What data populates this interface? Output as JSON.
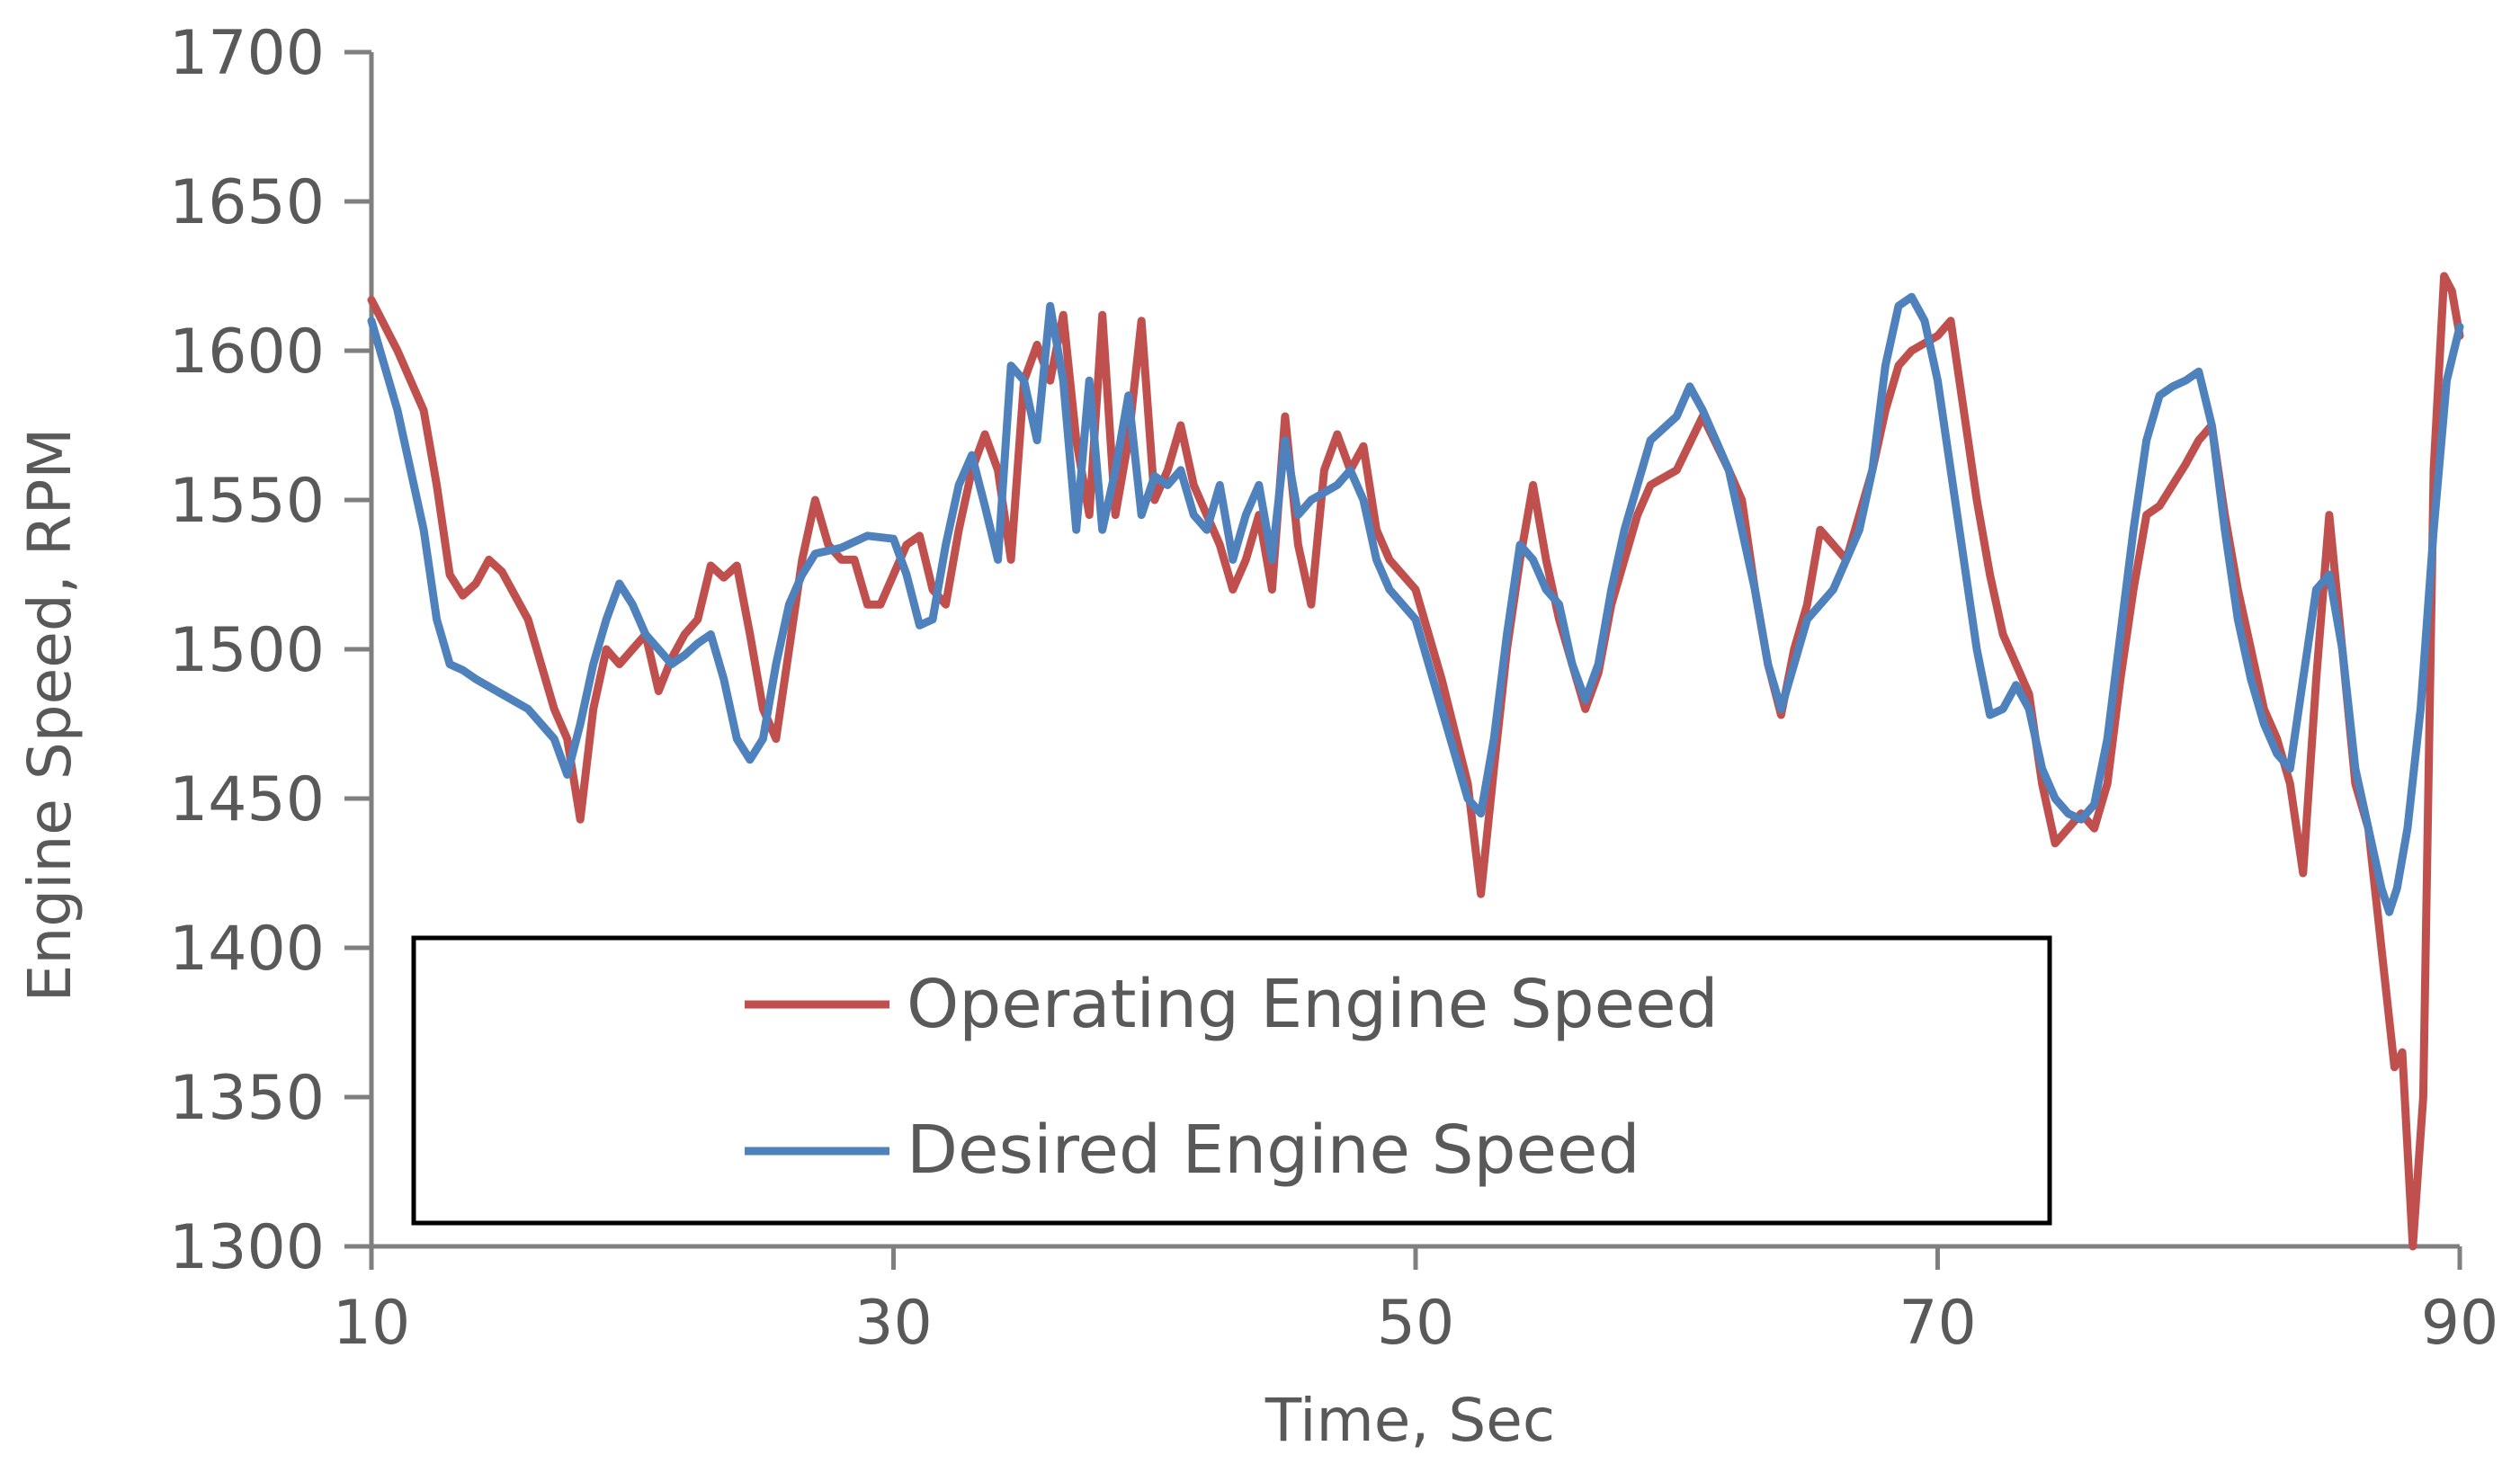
{
  "chart_data": {
    "type": "line",
    "xlabel": "Time, Sec",
    "ylabel": "Engine Speed, RPM",
    "xlim": [
      10,
      90
    ],
    "ylim": [
      1300,
      1700
    ],
    "xticks": [
      10,
      30,
      50,
      70,
      90
    ],
    "yticks": [
      1300,
      1350,
      1400,
      1450,
      1500,
      1550,
      1600,
      1650,
      1700
    ],
    "legend_position": "bottom-left",
    "series": [
      {
        "name": "Operating Engine Speed",
        "color": "#c0504d",
        "points": [
          [
            10,
            1617
          ],
          [
            11,
            1600
          ],
          [
            12,
            1580
          ],
          [
            12.5,
            1555
          ],
          [
            13,
            1525
          ],
          [
            13.5,
            1518
          ],
          [
            14,
            1522
          ],
          [
            14.5,
            1530
          ],
          [
            15,
            1526
          ],
          [
            16,
            1510
          ],
          [
            17,
            1480
          ],
          [
            17.5,
            1470
          ],
          [
            18,
            1443
          ],
          [
            18.5,
            1480
          ],
          [
            19,
            1500
          ],
          [
            19.5,
            1495
          ],
          [
            20,
            1500
          ],
          [
            20.5,
            1505
          ],
          [
            21,
            1486
          ],
          [
            21.5,
            1497
          ],
          [
            22,
            1505
          ],
          [
            22.5,
            1510
          ],
          [
            23,
            1528
          ],
          [
            23.5,
            1524
          ],
          [
            24,
            1528
          ],
          [
            24.5,
            1505
          ],
          [
            25,
            1480
          ],
          [
            25.5,
            1470
          ],
          [
            26,
            1500
          ],
          [
            26.5,
            1530
          ],
          [
            27,
            1550
          ],
          [
            27.5,
            1535
          ],
          [
            28,
            1530
          ],
          [
            28.5,
            1530
          ],
          [
            29,
            1515
          ],
          [
            29.5,
            1515
          ],
          [
            30,
            1525
          ],
          [
            30.5,
            1535
          ],
          [
            31,
            1538
          ],
          [
            31.5,
            1520
          ],
          [
            32,
            1515
          ],
          [
            32.5,
            1540
          ],
          [
            33,
            1560
          ],
          [
            33.5,
            1572
          ],
          [
            34,
            1560
          ],
          [
            34.5,
            1530
          ],
          [
            35,
            1590
          ],
          [
            35.5,
            1602
          ],
          [
            36,
            1590
          ],
          [
            36.5,
            1612
          ],
          [
            37,
            1570
          ],
          [
            37.5,
            1545
          ],
          [
            38,
            1612
          ],
          [
            38.5,
            1545
          ],
          [
            39,
            1570
          ],
          [
            39.5,
            1610
          ],
          [
            40,
            1550
          ],
          [
            40.5,
            1560
          ],
          [
            41,
            1575
          ],
          [
            41.5,
            1555
          ],
          [
            42,
            1545
          ],
          [
            42.5,
            1535
          ],
          [
            43,
            1520
          ],
          [
            43.5,
            1530
          ],
          [
            44,
            1545
          ],
          [
            44.5,
            1520
          ],
          [
            45,
            1578
          ],
          [
            45.5,
            1535
          ],
          [
            46,
            1515
          ],
          [
            46.5,
            1560
          ],
          [
            47,
            1572
          ],
          [
            47.5,
            1560
          ],
          [
            48,
            1568
          ],
          [
            48.5,
            1540
          ],
          [
            49,
            1530
          ],
          [
            49.5,
            1525
          ],
          [
            50,
            1520
          ],
          [
            51,
            1490
          ],
          [
            52,
            1455
          ],
          [
            52.5,
            1418
          ],
          [
            53,
            1460
          ],
          [
            53.5,
            1500
          ],
          [
            54,
            1530
          ],
          [
            54.5,
            1555
          ],
          [
            55,
            1530
          ],
          [
            55.5,
            1510
          ],
          [
            56,
            1495
          ],
          [
            56.5,
            1480
          ],
          [
            57,
            1492
          ],
          [
            57.5,
            1515
          ],
          [
            58,
            1530
          ],
          [
            58.5,
            1545
          ],
          [
            59,
            1555
          ],
          [
            60,
            1560
          ],
          [
            61,
            1578
          ],
          [
            62,
            1560
          ],
          [
            62.5,
            1550
          ],
          [
            63,
            1520
          ],
          [
            63.5,
            1495
          ],
          [
            64,
            1478
          ],
          [
            64.5,
            1500
          ],
          [
            65,
            1515
          ],
          [
            65.5,
            1540
          ],
          [
            66,
            1535
          ],
          [
            66.5,
            1530
          ],
          [
            67,
            1545
          ],
          [
            67.5,
            1560
          ],
          [
            68,
            1580
          ],
          [
            68.5,
            1595
          ],
          [
            69,
            1600
          ],
          [
            70,
            1605
          ],
          [
            70.5,
            1610
          ],
          [
            71,
            1580
          ],
          [
            71.5,
            1550
          ],
          [
            72,
            1525
          ],
          [
            72.5,
            1505
          ],
          [
            73,
            1495
          ],
          [
            73.5,
            1485
          ],
          [
            74,
            1455
          ],
          [
            74.5,
            1435
          ],
          [
            75,
            1440
          ],
          [
            75.5,
            1445
          ],
          [
            76,
            1440
          ],
          [
            76.5,
            1455
          ],
          [
            77,
            1490
          ],
          [
            77.5,
            1520
          ],
          [
            78,
            1545
          ],
          [
            78.5,
            1548
          ],
          [
            79,
            1555
          ],
          [
            79.5,
            1562
          ],
          [
            80,
            1570
          ],
          [
            80.5,
            1575
          ],
          [
            81,
            1545
          ],
          [
            81.5,
            1520
          ],
          [
            82,
            1500
          ],
          [
            82.5,
            1480
          ],
          [
            83,
            1470
          ],
          [
            83.5,
            1455
          ],
          [
            84,
            1425
          ],
          [
            84.5,
            1490
          ],
          [
            85,
            1545
          ],
          [
            85.5,
            1500
          ],
          [
            86,
            1455
          ],
          [
            86.5,
            1440
          ],
          [
            87,
            1400
          ],
          [
            87.5,
            1360
          ],
          [
            87.8,
            1365
          ],
          [
            88.2,
            1300
          ],
          [
            88.6,
            1350
          ],
          [
            89,
            1560
          ],
          [
            89.4,
            1625
          ],
          [
            89.7,
            1620
          ],
          [
            90,
            1605
          ]
        ]
      },
      {
        "name": "Desired Engine Speed",
        "color": "#4f81bd",
        "points": [
          [
            10,
            1610
          ],
          [
            11,
            1580
          ],
          [
            12,
            1540
          ],
          [
            12.5,
            1510
          ],
          [
            13,
            1495
          ],
          [
            13.5,
            1493
          ],
          [
            14,
            1490
          ],
          [
            15,
            1485
          ],
          [
            16,
            1480
          ],
          [
            17,
            1470
          ],
          [
            17.5,
            1458
          ],
          [
            18,
            1475
          ],
          [
            18.5,
            1495
          ],
          [
            19,
            1510
          ],
          [
            19.5,
            1522
          ],
          [
            20,
            1515
          ],
          [
            20.5,
            1505
          ],
          [
            21,
            1500
          ],
          [
            21.5,
            1495
          ],
          [
            22,
            1498
          ],
          [
            22.5,
            1502
          ],
          [
            23,
            1505
          ],
          [
            23.5,
            1490
          ],
          [
            24,
            1470
          ],
          [
            24.5,
            1463
          ],
          [
            25,
            1470
          ],
          [
            25.5,
            1495
          ],
          [
            26,
            1515
          ],
          [
            26.5,
            1525
          ],
          [
            27,
            1532
          ],
          [
            28,
            1534
          ],
          [
            29,
            1538
          ],
          [
            30,
            1537
          ],
          [
            30.5,
            1525
          ],
          [
            31,
            1508
          ],
          [
            31.5,
            1510
          ],
          [
            32,
            1535
          ],
          [
            32.5,
            1555
          ],
          [
            33,
            1565
          ],
          [
            33.5,
            1548
          ],
          [
            34,
            1530
          ],
          [
            34.5,
            1595
          ],
          [
            35,
            1590
          ],
          [
            35.5,
            1570
          ],
          [
            36,
            1615
          ],
          [
            36.5,
            1590
          ],
          [
            37,
            1540
          ],
          [
            37.5,
            1590
          ],
          [
            38,
            1540
          ],
          [
            38.5,
            1560
          ],
          [
            39,
            1585
          ],
          [
            39.5,
            1545
          ],
          [
            40,
            1558
          ],
          [
            40.5,
            1555
          ],
          [
            41,
            1560
          ],
          [
            41.5,
            1545
          ],
          [
            42,
            1540
          ],
          [
            42.5,
            1555
          ],
          [
            43,
            1530
          ],
          [
            43.5,
            1545
          ],
          [
            44,
            1555
          ],
          [
            44.5,
            1530
          ],
          [
            45,
            1570
          ],
          [
            45.5,
            1545
          ],
          [
            46,
            1550
          ],
          [
            47,
            1555
          ],
          [
            47.5,
            1560
          ],
          [
            48,
            1550
          ],
          [
            48.5,
            1530
          ],
          [
            49,
            1520
          ],
          [
            50,
            1510
          ],
          [
            51,
            1480
          ],
          [
            52,
            1450
          ],
          [
            52.5,
            1445
          ],
          [
            53,
            1470
          ],
          [
            53.5,
            1505
          ],
          [
            54,
            1535
          ],
          [
            54.5,
            1530
          ],
          [
            55,
            1520
          ],
          [
            55.5,
            1515
          ],
          [
            56,
            1495
          ],
          [
            56.5,
            1483
          ],
          [
            57,
            1495
          ],
          [
            57.5,
            1520
          ],
          [
            58,
            1540
          ],
          [
            58.5,
            1555
          ],
          [
            59,
            1570
          ],
          [
            60,
            1578
          ],
          [
            60.5,
            1588
          ],
          [
            61,
            1580
          ],
          [
            61.5,
            1570
          ],
          [
            62,
            1560
          ],
          [
            62.5,
            1540
          ],
          [
            63,
            1520
          ],
          [
            63.5,
            1495
          ],
          [
            64,
            1480
          ],
          [
            64.5,
            1495
          ],
          [
            65,
            1510
          ],
          [
            66,
            1520
          ],
          [
            66.5,
            1530
          ],
          [
            67,
            1540
          ],
          [
            67.5,
            1560
          ],
          [
            68,
            1595
          ],
          [
            68.5,
            1615
          ],
          [
            69,
            1618
          ],
          [
            69.5,
            1610
          ],
          [
            70,
            1590
          ],
          [
            70.5,
            1560
          ],
          [
            71,
            1530
          ],
          [
            71.5,
            1500
          ],
          [
            72,
            1478
          ],
          [
            72.5,
            1480
          ],
          [
            73,
            1488
          ],
          [
            73.5,
            1480
          ],
          [
            74,
            1460
          ],
          [
            74.5,
            1450
          ],
          [
            75,
            1445
          ],
          [
            75.5,
            1443
          ],
          [
            76,
            1448
          ],
          [
            76.5,
            1470
          ],
          [
            77,
            1505
          ],
          [
            77.5,
            1540
          ],
          [
            78,
            1570
          ],
          [
            78.5,
            1585
          ],
          [
            79,
            1588
          ],
          [
            79.5,
            1590
          ],
          [
            80,
            1593
          ],
          [
            80.5,
            1575
          ],
          [
            81,
            1540
          ],
          [
            81.5,
            1510
          ],
          [
            82,
            1490
          ],
          [
            82.5,
            1475
          ],
          [
            83,
            1465
          ],
          [
            83.5,
            1460
          ],
          [
            84,
            1490
          ],
          [
            84.5,
            1520
          ],
          [
            85,
            1525
          ],
          [
            85.5,
            1500
          ],
          [
            86,
            1460
          ],
          [
            86.5,
            1440
          ],
          [
            87,
            1420
          ],
          [
            87.3,
            1412
          ],
          [
            87.6,
            1420
          ],
          [
            88,
            1440
          ],
          [
            88.5,
            1480
          ],
          [
            89,
            1540
          ],
          [
            89.5,
            1590
          ],
          [
            90,
            1608
          ]
        ]
      }
    ]
  }
}
